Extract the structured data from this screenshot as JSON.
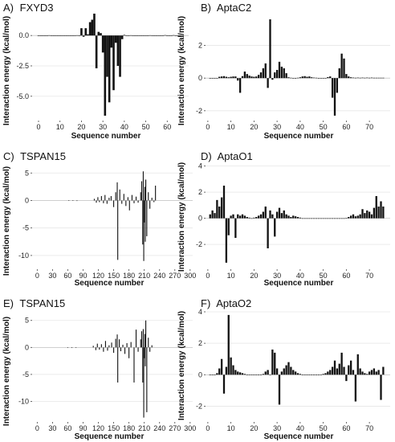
{
  "figure": {
    "background": "#ffffff",
    "bar_color": "#111111",
    "grid_color": "#e6e6e6"
  },
  "chart_data": [
    {
      "panel": "A)",
      "title": "FXYD3",
      "type": "bar",
      "xlabel": "Sequence number",
      "ylabel": "Interaction energy (kcal/mol)",
      "xlim": [
        -3,
        70
      ],
      "ylim": [
        -7.0,
        1.6
      ],
      "xticks": [
        0,
        10,
        20,
        30,
        40,
        50,
        60
      ],
      "yticks": [
        0.0,
        -2.5,
        -5.0
      ],
      "ytick_labels": [
        "0.0",
        "-2.5",
        "-5.0"
      ],
      "grid": true,
      "x": [
        0,
        1,
        2,
        3,
        4,
        5,
        6,
        7,
        8,
        9,
        10,
        11,
        12,
        13,
        14,
        15,
        16,
        17,
        18,
        19,
        20,
        21,
        22,
        23,
        24,
        25,
        26,
        27,
        28,
        29,
        30,
        31,
        32,
        33,
        34,
        35,
        36,
        37,
        38,
        39,
        40,
        41,
        42,
        43,
        44,
        45,
        46,
        47,
        48,
        49,
        50,
        51,
        52,
        53,
        54,
        55,
        56,
        57,
        58,
        59,
        60,
        61,
        62,
        63,
        64,
        65,
        66
      ],
      "values": [
        0,
        -0.02,
        0,
        -0.02,
        0,
        0.02,
        0,
        -0.02,
        0,
        0,
        0,
        0,
        0,
        0,
        0,
        -0.03,
        0,
        0,
        0.02,
        0,
        0.6,
        -0.1,
        0.6,
        0.1,
        1.1,
        1.3,
        1.8,
        -2.7,
        0.3,
        0.2,
        -1.4,
        -6.6,
        -3.4,
        -5.5,
        -1.0,
        -4.5,
        -0.6,
        -2.5,
        -3.4,
        -0.3,
        0.05,
        0,
        0,
        0.02,
        0,
        -0.03,
        0,
        0,
        0,
        -0.02,
        0,
        0,
        0.02,
        0,
        -0.03,
        0,
        0,
        0,
        0,
        0.03,
        0,
        -0.02,
        0,
        0.03,
        0,
        0,
        0
      ]
    },
    {
      "panel": "B)",
      "title": "AptaC2",
      "type": "bar",
      "xlabel": "Sequence number",
      "ylabel": "Interaction energy (kcal/mol)",
      "xlim": [
        -1,
        79
      ],
      "ylim": [
        -2.6,
        3.8
      ],
      "xticks": [
        0,
        10,
        20,
        30,
        40,
        50,
        60,
        70
      ],
      "yticks": [
        2,
        0,
        -2
      ],
      "ytick_labels": [
        "2",
        "0",
        "-2"
      ],
      "grid": true,
      "x": [
        1,
        2,
        3,
        4,
        5,
        6,
        7,
        8,
        9,
        10,
        11,
        12,
        13,
        14,
        15,
        16,
        17,
        18,
        19,
        20,
        21,
        22,
        23,
        24,
        25,
        26,
        27,
        28,
        29,
        30,
        31,
        32,
        33,
        34,
        35,
        36,
        37,
        38,
        39,
        40,
        41,
        42,
        43,
        44,
        45,
        46,
        47,
        48,
        49,
        50,
        51,
        52,
        53,
        54,
        55,
        56,
        57,
        58,
        59,
        60,
        61,
        62,
        63,
        64,
        65,
        66,
        67,
        68,
        69,
        70,
        71,
        72,
        73,
        74,
        75,
        76
      ],
      "values": [
        0,
        0,
        0,
        0,
        0.08,
        0.1,
        0.12,
        0.08,
        0.05,
        0.08,
        0.1,
        0.1,
        -0.15,
        -0.9,
        0.12,
        0.4,
        0.25,
        0.15,
        0.1,
        0.08,
        0.1,
        0.2,
        0.35,
        0.6,
        0.9,
        -0.6,
        3.6,
        -0.1,
        0.35,
        0.5,
        1.0,
        0.7,
        0.6,
        0.3,
        0.05,
        0.02,
        0,
        0,
        0.02,
        0.05,
        0.1,
        0.12,
        0.08,
        0.1,
        0.05,
        0.03,
        0.02,
        0,
        0,
        0,
        0,
        0.06,
        0.1,
        -1.2,
        -2.3,
        -0.9,
        0.6,
        1.5,
        1.2,
        0.25,
        0.1,
        0.05,
        0.03,
        0.02,
        0.03,
        0.02,
        0.03,
        0.02,
        0.03,
        0.02,
        0.03,
        0.02,
        0.02,
        0.02,
        0.02,
        0.02
      ]
    },
    {
      "panel": "C)",
      "title": "TSPAN15",
      "type": "bar",
      "xlabel": "Sequence number",
      "ylabel": "Interaction energy (kcal/mol)",
      "xlim": [
        -10,
        305
      ],
      "ylim": [
        -12.5,
        6.5
      ],
      "xticks": [
        0,
        30,
        60,
        90,
        120,
        150,
        180,
        210,
        240,
        270,
        300
      ],
      "yticks": [
        5,
        0,
        -5,
        -10
      ],
      "ytick_labels": [
        "5",
        "0",
        "-5",
        "-10"
      ],
      "grid": true,
      "x": [
        62,
        70,
        78,
        112,
        116,
        119,
        122,
        126,
        130,
        133,
        137,
        141,
        145,
        150,
        154,
        157,
        158,
        162,
        166,
        170,
        174,
        178,
        181,
        186,
        190,
        194,
        198,
        203,
        205,
        207,
        208,
        209,
        210,
        211,
        212,
        213,
        215,
        218,
        221,
        225,
        229,
        232
      ],
      "values": [
        0.05,
        0.05,
        -0.05,
        0.3,
        -0.4,
        0.6,
        -0.3,
        0.8,
        -0.5,
        1.0,
        -0.6,
        0.5,
        0.8,
        -1.2,
        1.5,
        3.3,
        -10.8,
        2.0,
        -0.6,
        1.2,
        -1.0,
        0.6,
        -1.8,
        1.0,
        -0.5,
        0.7,
        -0.4,
        1.5,
        3.5,
        -8.0,
        5.3,
        -11.0,
        -4.0,
        2.5,
        -7.5,
        3.8,
        -6.5,
        1.5,
        -1.5,
        0.5,
        -0.3,
        2.7
      ]
    },
    {
      "panel": "D)",
      "title": "AptaO1",
      "type": "bar",
      "xlabel": "Sequence number",
      "ylabel": "Interaction energy (kcal/mol)",
      "xlim": [
        -1,
        79
      ],
      "ylim": [
        -3.9,
        4.1
      ],
      "xticks": [
        0,
        10,
        20,
        30,
        40,
        50,
        60,
        70
      ],
      "yticks": [
        4,
        2,
        0,
        -2
      ],
      "ytick_labels": [
        "4",
        "2",
        "0",
        "-2"
      ],
      "grid": true,
      "x": [
        1,
        2,
        3,
        4,
        5,
        6,
        7,
        8,
        9,
        10,
        11,
        12,
        13,
        14,
        15,
        16,
        17,
        18,
        19,
        20,
        21,
        22,
        23,
        24,
        25,
        26,
        27,
        28,
        29,
        30,
        31,
        32,
        33,
        34,
        35,
        36,
        37,
        38,
        39,
        40,
        41,
        42,
        43,
        44,
        45,
        46,
        47,
        48,
        49,
        50,
        51,
        52,
        53,
        54,
        55,
        56,
        57,
        58,
        59,
        60,
        61,
        62,
        63,
        64,
        65,
        66,
        67,
        68,
        69,
        70,
        71,
        72,
        73,
        74,
        75,
        76
      ],
      "values": [
        0.3,
        0.6,
        0.4,
        1.4,
        0.9,
        1.6,
        2.5,
        -3.4,
        -1.3,
        0.2,
        0.3,
        -1.5,
        0.3,
        0.2,
        0.3,
        0.2,
        0.1,
        0.05,
        0,
        0.05,
        0.1,
        0.2,
        0.3,
        0.5,
        0.9,
        -2.3,
        0.6,
        0.3,
        -1.4,
        0.5,
        0.8,
        0.4,
        0.6,
        0.3,
        0.2,
        0.1,
        0.2,
        0.15,
        0.1,
        0.05,
        0,
        0,
        0,
        0,
        0,
        0,
        0,
        0,
        0,
        0,
        0,
        0,
        0,
        0,
        0,
        0,
        0,
        0,
        0,
        0.02,
        0.1,
        0.2,
        0.3,
        0.15,
        0.2,
        0.3,
        0.7,
        0.4,
        0.6,
        0.5,
        0.3,
        0.8,
        1.7,
        0.9,
        1.3,
        0.9
      ]
    },
    {
      "panel": "E)",
      "title": "TSPAN15",
      "type": "bar",
      "xlabel": "Sequence number",
      "ylabel": "Interaction energy (kcal/mol)",
      "xlim": [
        -10,
        305
      ],
      "ylim": [
        -13.8,
        6.6
      ],
      "xticks": [
        0,
        30,
        60,
        90,
        120,
        150,
        180,
        210,
        240,
        270,
        300
      ],
      "yticks": [
        5,
        0,
        -5,
        -10
      ],
      "ytick_labels": [
        "5",
        "0",
        "-5",
        "-10"
      ],
      "grid": true,
      "x": [
        60,
        68,
        76,
        110,
        115,
        118,
        122,
        126,
        130,
        134,
        138,
        141,
        146,
        150,
        154,
        157,
        158,
        161,
        164,
        168,
        172,
        176,
        180,
        184,
        190,
        194,
        198,
        203,
        205,
        207,
        208,
        209,
        210,
        211,
        212,
        213,
        215,
        218,
        221,
        225
      ],
      "values": [
        0.05,
        -0.05,
        0.05,
        0.3,
        -0.5,
        0.7,
        -0.4,
        0.6,
        -0.8,
        1.2,
        -0.6,
        0.4,
        0.9,
        -1.0,
        1.6,
        2.4,
        -6.5,
        1.5,
        -0.7,
        0.5,
        -1.2,
        0.8,
        -2.0,
        1.0,
        -6.5,
        3.3,
        -0.8,
        1.5,
        3.0,
        -6.5,
        3.4,
        -13.0,
        -2.0,
        2.5,
        -3.5,
        5.0,
        -12.0,
        1.8,
        -0.8,
        0.4
      ]
    },
    {
      "panel": "F)",
      "title": "AptaO2",
      "type": "bar",
      "xlabel": "Sequence number",
      "ylabel": "Interaction energy (kcal/mol)",
      "xlim": [
        -1,
        79
      ],
      "ylim": [
        -3.0,
        4.0
      ],
      "xticks": [
        0,
        10,
        20,
        30,
        40,
        50,
        60,
        70
      ],
      "yticks": [
        4,
        2,
        0,
        -2
      ],
      "ytick_labels": [
        "4",
        "2",
        "0",
        "-2"
      ],
      "grid": true,
      "x": [
        1,
        2,
        3,
        4,
        5,
        6,
        7,
        8,
        9,
        10,
        11,
        12,
        13,
        14,
        15,
        16,
        17,
        18,
        19,
        20,
        21,
        22,
        23,
        24,
        25,
        26,
        27,
        28,
        29,
        30,
        31,
        32,
        33,
        34,
        35,
        36,
        37,
        38,
        39,
        40,
        41,
        42,
        43,
        44,
        45,
        46,
        47,
        48,
        49,
        50,
        51,
        52,
        53,
        54,
        55,
        56,
        57,
        58,
        59,
        60,
        61,
        62,
        63,
        64,
        65,
        66,
        67,
        68,
        69,
        70,
        71,
        72,
        73,
        74,
        75,
        76
      ],
      "values": [
        0,
        0,
        0,
        0.1,
        0.4,
        1.0,
        -1.2,
        0.5,
        3.8,
        1.1,
        0.6,
        0.3,
        0.2,
        0.15,
        0.1,
        0.05,
        0,
        0,
        0,
        0,
        0,
        0,
        0,
        0.05,
        0.2,
        0.3,
        0,
        1.6,
        1.4,
        0.4,
        -1.9,
        0.2,
        0.4,
        0.6,
        0.8,
        0.5,
        0.3,
        0.2,
        0.1,
        0.05,
        0,
        0,
        0,
        0,
        0,
        0,
        0,
        0,
        0,
        0.05,
        0.1,
        0.2,
        0.3,
        0.5,
        0.9,
        0.4,
        0.7,
        1.4,
        0.5,
        -0.4,
        0.6,
        0.9,
        0.3,
        -1.7,
        1.3,
        0.4,
        0.2,
        0.1,
        0.05,
        0.2,
        0.3,
        0.4,
        0.2,
        0.3,
        -1.6,
        0.5
      ]
    }
  ]
}
